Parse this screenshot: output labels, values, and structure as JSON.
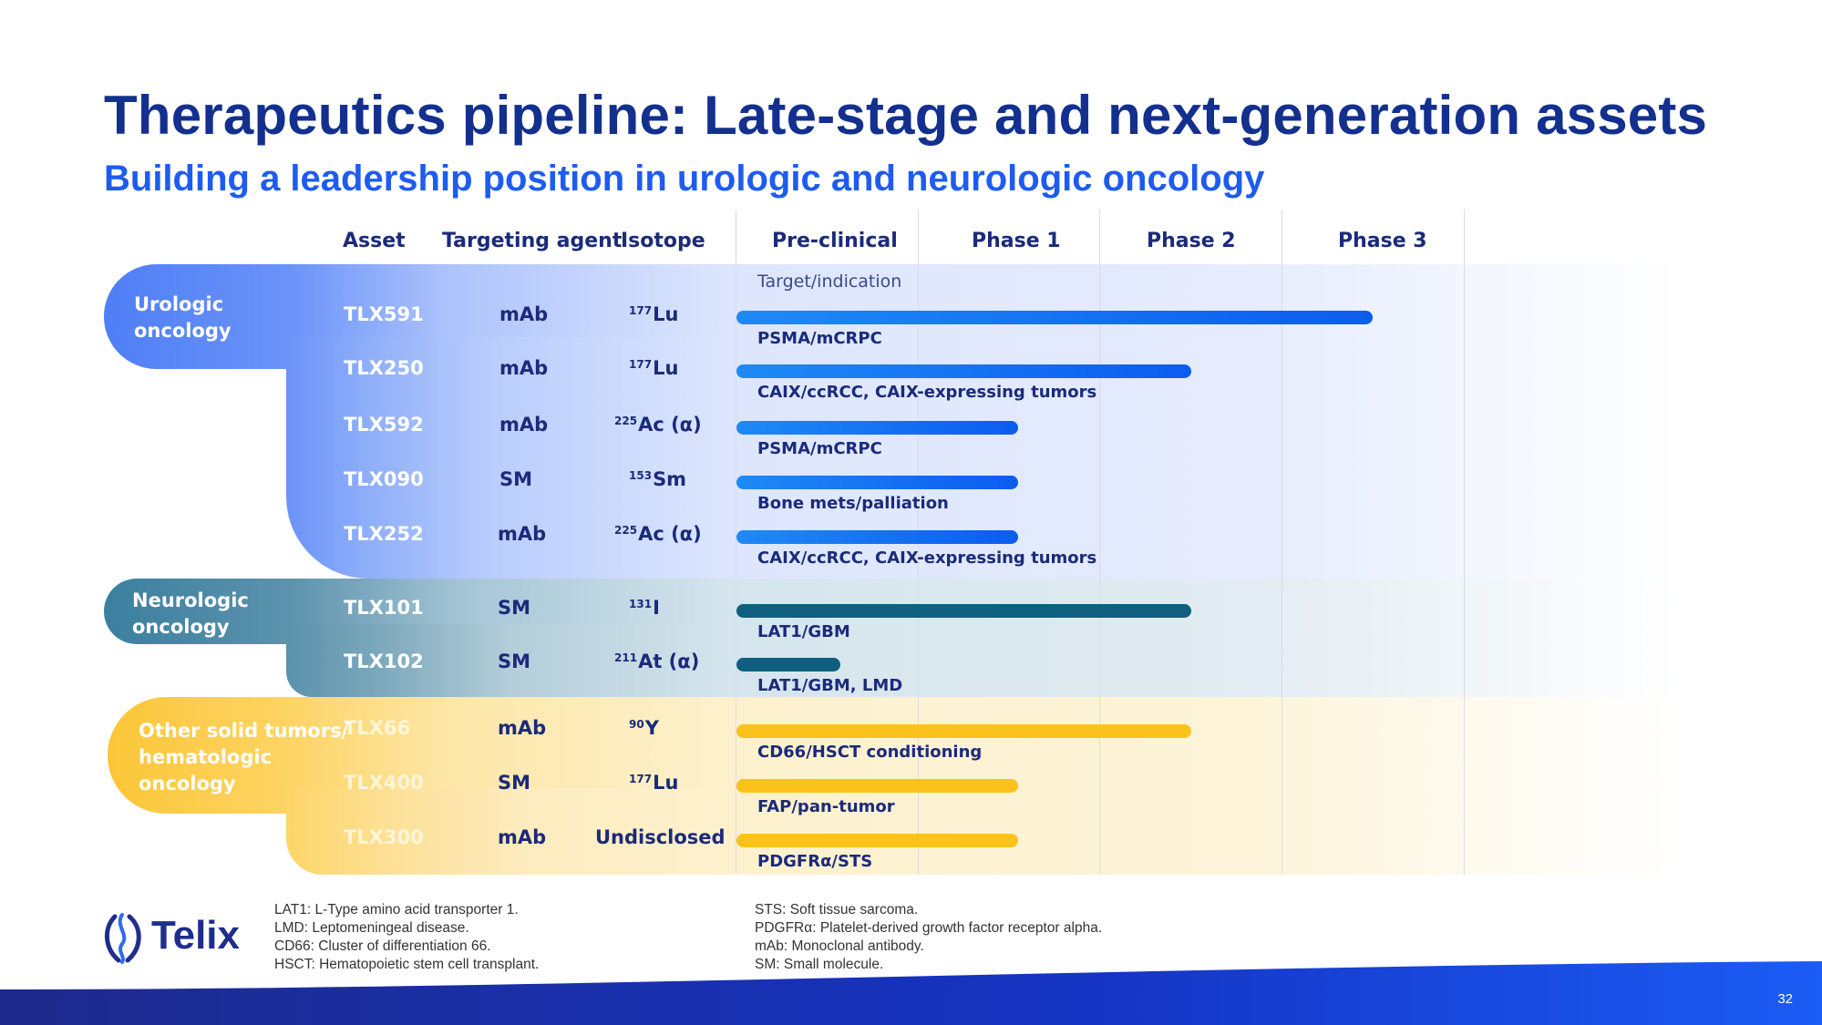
{
  "title": "Therapeutics pipeline: Late-stage and next-generation assets",
  "subtitle": "Building a leadership position in urologic and neurologic oncology",
  "columns": {
    "asset": "Asset",
    "agent": "Targeting agent",
    "isotope": "Isotope",
    "phases": [
      "Pre-clinical",
      "Phase 1",
      "Phase 2",
      "Phase 3"
    ]
  },
  "target_indication_label": "Target/indication",
  "groups": [
    {
      "label_lines": [
        "Urologic",
        "oncology"
      ],
      "color": "#4a7bf7"
    },
    {
      "label_lines": [
        "Neurologic",
        "oncology"
      ],
      "color": "#2e7d9e"
    },
    {
      "label_lines": [
        "Other solid tumors/",
        "hematologic",
        "oncology"
      ],
      "color": "#fcc638"
    }
  ],
  "assets": [
    {
      "asset": "TLX591",
      "agent": "mAb",
      "iso_mass": "177",
      "iso_sym": "Lu",
      "indication": "PSMA/mCRPC",
      "progress_phase": 3.5,
      "bar_color": "#1b6cf2"
    },
    {
      "asset": "TLX250",
      "agent": "mAb",
      "iso_mass": "177",
      "iso_sym": "Lu",
      "indication": "CAIX/ccRCC, CAIX-expressing tumors",
      "progress_phase": 2.5,
      "bar_color": "#1b6cf2"
    },
    {
      "asset": "TLX592",
      "agent": "mAb",
      "iso_mass": "225",
      "iso_sym": "Ac (α)",
      "indication": "PSMA/mCRPC",
      "progress_phase": 1.55,
      "bar_color": "#1b6cf2"
    },
    {
      "asset": "TLX090",
      "agent": "SM",
      "iso_mass": "153",
      "iso_sym": "Sm",
      "indication": "Bone mets/palliation",
      "progress_phase": 1.55,
      "bar_color": "#1b6cf2"
    },
    {
      "asset": "TLX252",
      "agent": "mAb",
      "iso_mass": "225",
      "iso_sym": "Ac (α)",
      "indication": "CAIX/ccRCC, CAIX-expressing tumors",
      "progress_phase": 1.55,
      "bar_color": "#1b6cf2"
    },
    {
      "asset": "TLX101",
      "agent": "SM",
      "iso_mass": "131",
      "iso_sym": "I",
      "indication": "LAT1/GBM",
      "progress_phase": 2.5,
      "bar_color": "#0f5f80"
    },
    {
      "asset": "TLX102",
      "agent": "SM",
      "iso_mass": "211",
      "iso_sym": "At (α)",
      "indication": "LAT1/GBM, LMD",
      "progress_phase": 0.57,
      "bar_color": "#0f5f80"
    },
    {
      "asset": "TLX66",
      "agent": "mAb",
      "iso_mass": "90",
      "iso_sym": "Y",
      "indication": "CD66/HSCT conditioning",
      "progress_phase": 2.5,
      "bar_color": "#fcc21c"
    },
    {
      "asset": "TLX400",
      "agent": "SM",
      "iso_mass": "177",
      "iso_sym": "Lu",
      "indication": "FAP/pan-tumor",
      "progress_phase": 1.55,
      "bar_color": "#fcc21c"
    },
    {
      "asset": "TLX300",
      "agent": "mAb",
      "iso_mass": "",
      "iso_sym": "Undisclosed",
      "indication": "PDGFRα/STS",
      "progress_phase": 1.55,
      "bar_color": "#fcc21c"
    }
  ],
  "logo_text": "Telix",
  "footnotes_left": [
    "LAT1: L-Type amino acid transporter 1.",
    "LMD: Leptomeningeal disease.",
    "CD66: Cluster of differentiation 66.",
    "HSCT: Hematopoietic stem cell transplant."
  ],
  "footnotes_right": [
    "STS: Soft tissue sarcoma.",
    "PDGFRα: Platelet-derived growth factor receptor alpha.",
    "mAb: Monoclonal antibody.",
    "SM: Small molecule."
  ],
  "page_number": "32"
}
